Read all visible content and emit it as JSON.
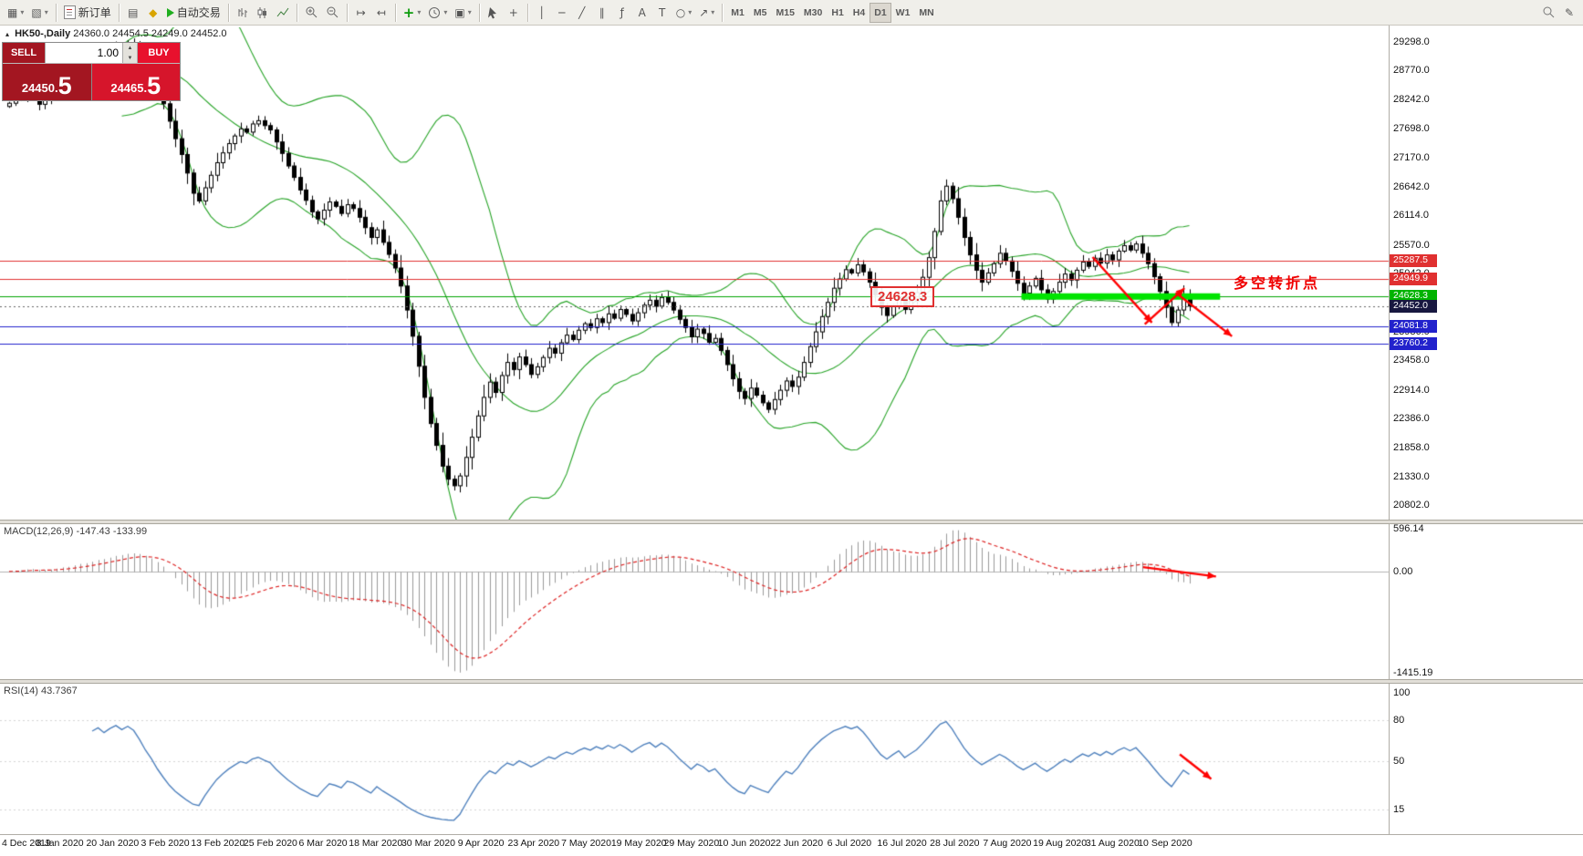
{
  "toolbar": {
    "new_order_label": "新订单",
    "autotrading_label": "自动交易",
    "timeframes": [
      "M1",
      "M5",
      "M15",
      "M30",
      "H1",
      "H4",
      "D1",
      "W1",
      "MN"
    ],
    "active_timeframe": "D1",
    "icons": {
      "new_chart": "▦",
      "profiles": "▧",
      "alerts": "▤",
      "metaeditor": "◆",
      "dropdown": "▾",
      "autoscroll": "↦",
      "shift": "↤",
      "templates": "▣",
      "crosshair": "+",
      "vline": "│",
      "hline": "─",
      "trendline": "╱",
      "channel": "∥",
      "fibonacci": "ƒ",
      "text_tool": "A",
      "label_tool": "T",
      "shapes": "○",
      "arrow_tool": "↗",
      "edit": "✎",
      "oct_toggle": "▴",
      "indicators_plus": "+"
    }
  },
  "chart_header": {
    "symbol": "HK50-,Daily",
    "ohlc": "24360.0 24454.5 24249.0 24452.0"
  },
  "one_click_trading": {
    "sell_label": "SELL",
    "buy_label": "BUY",
    "lot_size": "1.00",
    "sell_price_main": "24450.",
    "sell_price_big": "5",
    "buy_price_main": "24465.",
    "buy_price_big": "5"
  },
  "annotations": {
    "level_box": "24628.3",
    "turning_point": "多空转折点"
  },
  "indicators": {
    "macd_header": "MACD(12,26,9) -147.43 -133.99",
    "rsi_header": "RSI(14) 43.7367"
  },
  "chart_data": [
    {
      "type": "candlestick",
      "symbol": "HK50-",
      "timeframe": "Daily",
      "title": "HK50-,Daily",
      "y_range": [
        20540,
        29560
      ],
      "y_tick_labels": [
        "29298.0",
        "28770.0",
        "28242.0",
        "27698.0",
        "27170.0",
        "26642.0",
        "26114.0",
        "25570.0",
        "25042.0",
        "24514.0",
        "23986.0",
        "23458.0",
        "22914.0",
        "22386.0",
        "21858.0",
        "21330.0",
        "20802.0"
      ],
      "x_tick_labels": [
        "4 Dec 2019",
        "8 Jan 2020",
        "20 Jan 2020",
        "3 Feb 2020",
        "13 Feb 2020",
        "25 Feb 2020",
        "6 Mar 2020",
        "18 Mar 2020",
        "30 Mar 2020",
        "9 Apr 2020",
        "23 Apr 2020",
        "7 May 2020",
        "19 May 2020",
        "29 May 2020",
        "10 Jun 2020",
        "22 Jun 2020",
        "6 Jul 2020",
        "16 Jul 2020",
        "28 Jul 2020",
        "7 Aug 2020",
        "19 Aug 2020",
        "31 Aug 2020",
        "10 Sep 2020"
      ],
      "closes": [
        28170,
        28310,
        28260,
        28380,
        28320,
        28150,
        28240,
        28300,
        28420,
        28530,
        28460,
        28640,
        28720,
        28650,
        28830,
        28960,
        28890,
        29050,
        29180,
        29120,
        29260,
        29200,
        29060,
        28870,
        28690,
        28430,
        28160,
        27840,
        27520,
        27230,
        26890,
        26520,
        26380,
        26620,
        26850,
        27080,
        27260,
        27430,
        27570,
        27700,
        27640,
        27790,
        27850,
        27760,
        27680,
        27460,
        27250,
        27020,
        26810,
        26580,
        26390,
        26180,
        26050,
        26210,
        26360,
        26280,
        26150,
        26310,
        26240,
        26080,
        25890,
        25710,
        25850,
        25620,
        25400,
        25150,
        24820,
        24380,
        23900,
        23350,
        22780,
        22300,
        21900,
        21520,
        21280,
        21160,
        21340,
        21680,
        22050,
        22440,
        22780,
        23060,
        22870,
        23180,
        23420,
        23290,
        23520,
        23380,
        23200,
        23340,
        23510,
        23680,
        23590,
        23780,
        23920,
        23840,
        24010,
        24130,
        24060,
        24220,
        24150,
        24310,
        24230,
        24390,
        24300,
        24180,
        24330,
        24470,
        24560,
        24450,
        24610,
        24520,
        24380,
        24210,
        24060,
        23890,
        24030,
        23950,
        23790,
        23860,
        23640,
        23380,
        23120,
        22890,
        22760,
        22950,
        22820,
        22680,
        22560,
        22740,
        22910,
        23080,
        22980,
        23150,
        23420,
        23710,
        23980,
        24260,
        24520,
        24780,
        24950,
        25120,
        25060,
        25210,
        25080,
        24890,
        24660,
        24430,
        24280,
        24450,
        24610,
        24390,
        24540,
        24700,
        24980,
        25340,
        25820,
        26380,
        26650,
        26420,
        26080,
        25710,
        25390,
        25110,
        24890,
        25060,
        25230,
        25420,
        25280,
        25090,
        24870,
        24690,
        24820,
        24960,
        24750,
        24580,
        24720,
        24890,
        25040,
        24930,
        25110,
        25260,
        25180,
        25330,
        25240,
        25390,
        25300,
        25460,
        25560,
        25480,
        25590,
        25420,
        25230,
        24990,
        24720,
        24430,
        24150,
        24380,
        24640,
        24452
      ],
      "bollinger": {
        "period": 20,
        "deviation": 2,
        "color": "#26a326"
      },
      "price_lines": [
        {
          "value": 25287.5,
          "label": "25287.5",
          "color": "#e03030",
          "tag_color": "#e03030",
          "style": "solid"
        },
        {
          "value": 24949.9,
          "label": "24949.9",
          "color": "#e03030",
          "tag_color": "#e03030",
          "style": "solid"
        },
        {
          "value": 24628.3,
          "label": "24628.3",
          "color": "#00a400",
          "tag_color": "#00b300",
          "style": "solid"
        },
        {
          "value": 24452.0,
          "label": "24452.0",
          "color": "#666666",
          "tag_color": "#181840",
          "style": "dotted"
        },
        {
          "value": 24081.8,
          "label": "24081.8",
          "color": "#2222cc",
          "tag_color": "#2222cc",
          "style": "solid"
        },
        {
          "value": 23760.2,
          "label": "23760.2",
          "color": "#2222cc",
          "tag_color": "#2222cc",
          "style": "solid"
        }
      ],
      "highlight_segment": {
        "value": 24628.3,
        "from_bar": 171,
        "to_bar": 204.5,
        "color": "#00e400"
      },
      "arrows": [
        {
          "from": [
            183,
            25350
          ],
          "to": [
            193,
            24150
          ]
        },
        {
          "from": [
            191.8,
            24120
          ],
          "to": [
            198.5,
            24780
          ]
        },
        {
          "from": [
            197,
            24700
          ],
          "to": [
            206.5,
            23900
          ]
        }
      ]
    },
    {
      "type": "macd",
      "params": "12,26,9",
      "current_macd": -147.43,
      "current_signal": -133.99,
      "y_ticks": [
        {
          "label": "596.14",
          "value": 596.14
        },
        {
          "label": "0.00",
          "value": 0
        },
        {
          "label": "-1415.19",
          "value": -1415.19
        }
      ],
      "histogram_color": "#9a9a9a",
      "signal_color": "#dd2222",
      "arrows": [
        {
          "from": [
            191.5,
            60
          ],
          "to": [
            203.8,
            -70
          ]
        }
      ]
    },
    {
      "type": "rsi",
      "period": 14,
      "current": 43.7367,
      "y_ticks": [
        {
          "label": "100",
          "value": 100
        },
        {
          "label": "80",
          "value": 80
        },
        {
          "label": "50",
          "value": 50
        },
        {
          "label": "15",
          "value": 15
        }
      ],
      "line_color": "#4f81bd",
      "arrows": [
        {
          "from": [
            197.7,
            55
          ],
          "to": [
            203,
            37
          ]
        }
      ]
    }
  ]
}
